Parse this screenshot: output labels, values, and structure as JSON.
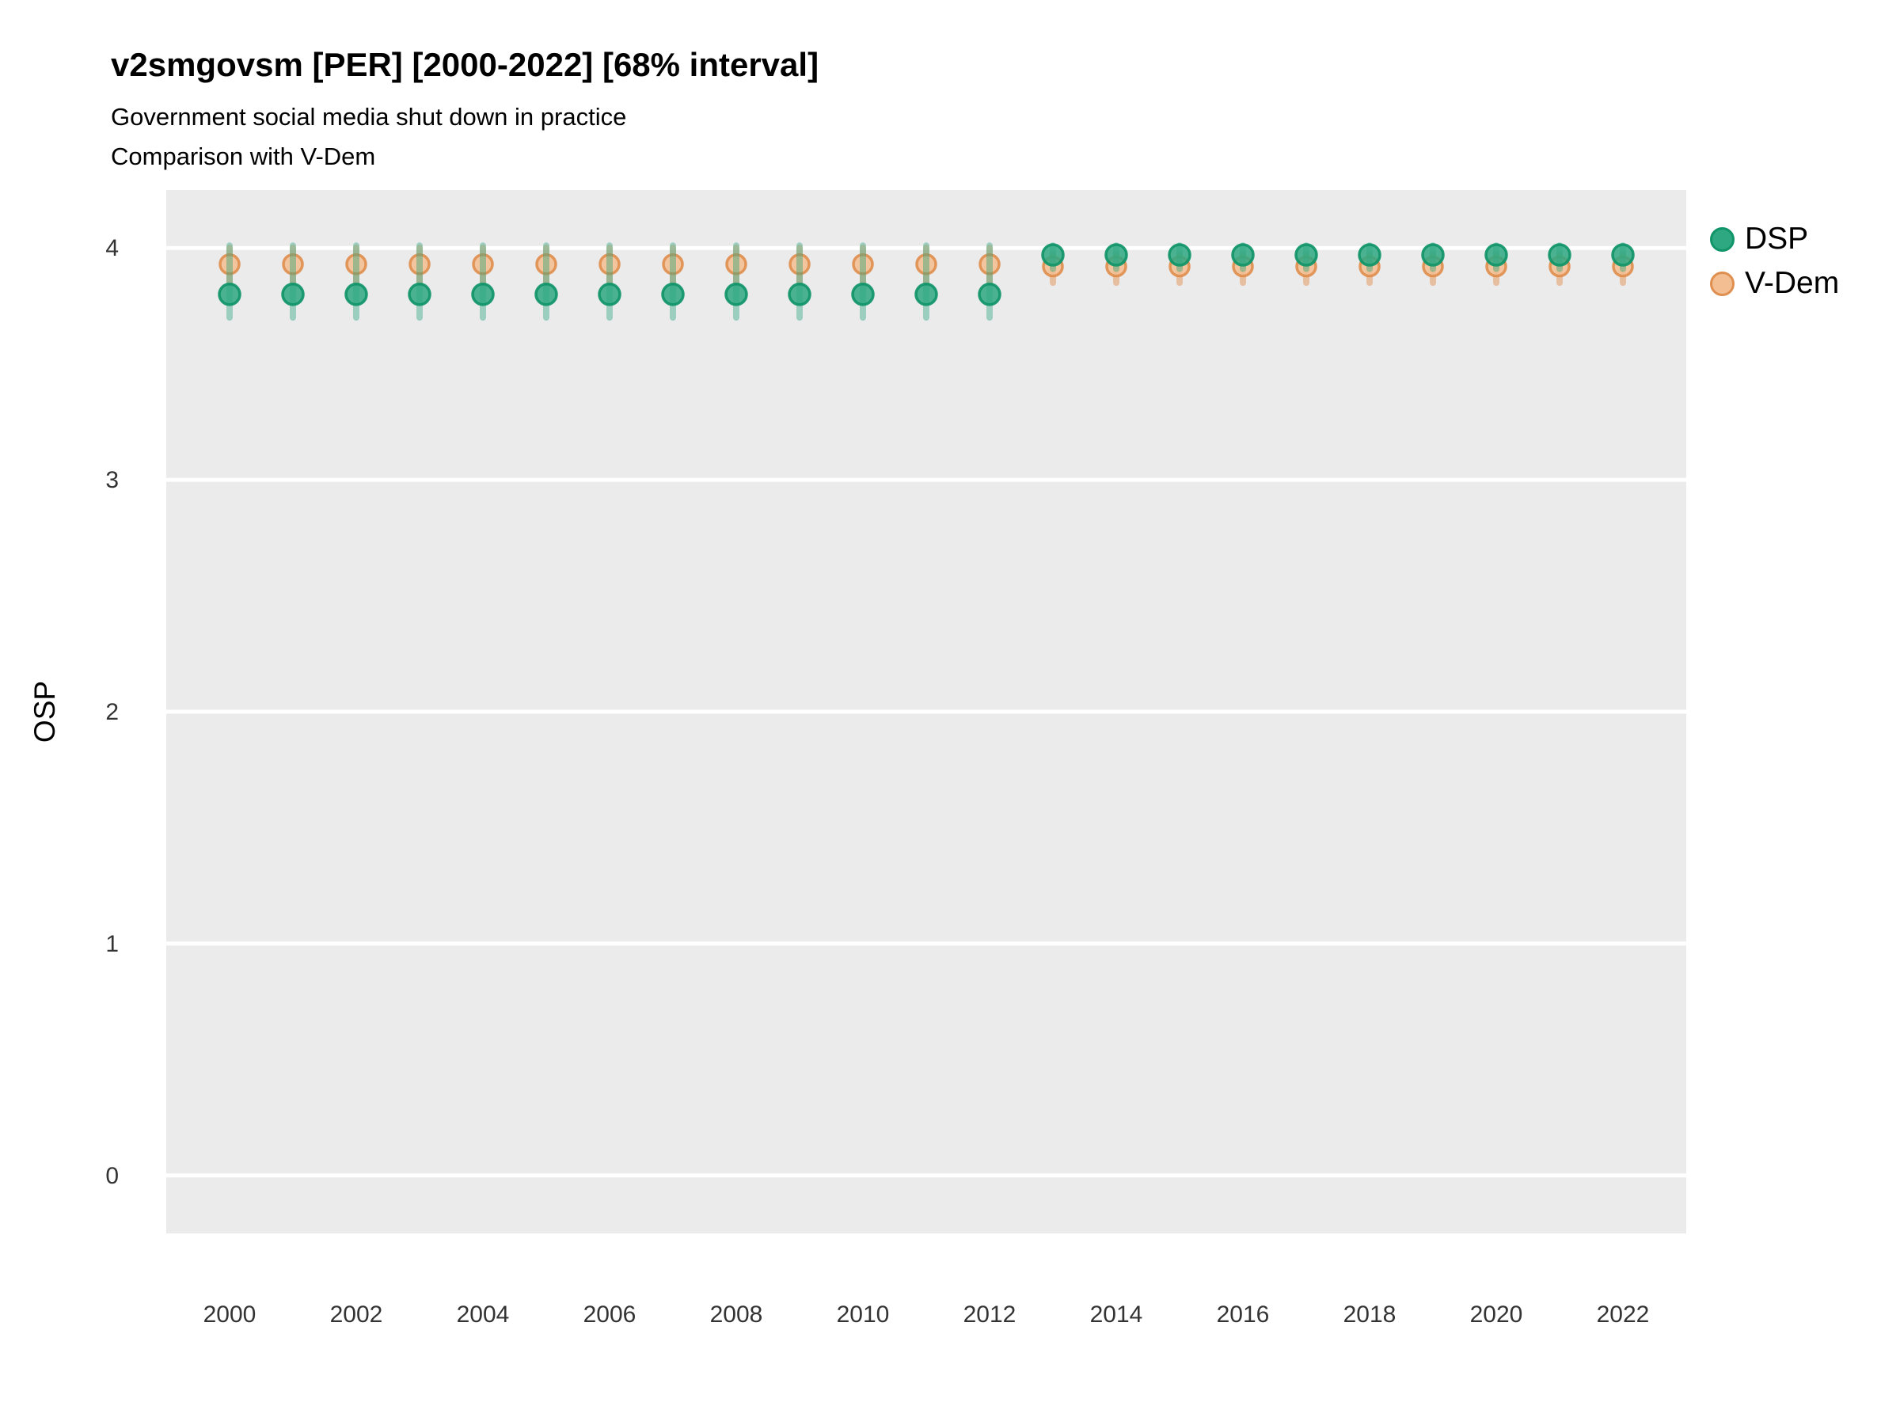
{
  "chart_data": {
    "type": "scatter",
    "title": "v2smgovsm [PER] [2000-2022] [68% interval]",
    "subtitle1": "Government social media shut down in practice",
    "subtitle2": "Comparison with V-Dem",
    "xlabel": "",
    "ylabel": "OSP",
    "interval_note": "68% interval",
    "country_code": "PER",
    "panel_bg": "#EBEBEB",
    "gridline_color": "#FFFFFF",
    "grid": "major-horizontal-only",
    "xlim": [
      1999,
      2023
    ],
    "ylim": [
      -0.25,
      4.25
    ],
    "xticks": [
      2000,
      2002,
      2004,
      2006,
      2008,
      2010,
      2012,
      2014,
      2016,
      2018,
      2020,
      2022
    ],
    "yticks": [
      0,
      1,
      2,
      3,
      4
    ],
    "years": [
      2000,
      2001,
      2002,
      2003,
      2004,
      2005,
      2006,
      2007,
      2008,
      2009,
      2010,
      2011,
      2012,
      2013,
      2014,
      2015,
      2016,
      2017,
      2018,
      2019,
      2020,
      2021,
      2022
    ],
    "series": [
      {
        "id": "vdem",
        "name": "V-Dem",
        "point_fill": "#F3BE92",
        "point_stroke": "#DF8F4F",
        "bar_color": "rgba(223,143,79,0.48)",
        "point_radius": 12,
        "values": [
          3.93,
          3.93,
          3.93,
          3.93,
          3.93,
          3.93,
          3.93,
          3.93,
          3.93,
          3.93,
          3.93,
          3.93,
          3.93,
          3.92,
          3.92,
          3.92,
          3.92,
          3.92,
          3.92,
          3.92,
          3.92,
          3.92,
          3.92
        ],
        "lo": [
          3.85,
          3.85,
          3.85,
          3.85,
          3.85,
          3.85,
          3.85,
          3.85,
          3.85,
          3.85,
          3.85,
          3.85,
          3.85,
          3.85,
          3.85,
          3.85,
          3.85,
          3.85,
          3.85,
          3.85,
          3.85,
          3.85,
          3.85
        ],
        "hi": [
          4.0,
          4.0,
          4.0,
          4.0,
          4.0,
          4.0,
          4.0,
          4.0,
          4.0,
          4.0,
          4.0,
          4.0,
          4.0,
          3.97,
          3.97,
          3.97,
          3.97,
          3.97,
          3.97,
          3.97,
          3.97,
          3.97,
          3.97
        ]
      },
      {
        "id": "dsp",
        "name": "DSP",
        "point_fill": "#2EA881",
        "point_stroke": "#109468",
        "bar_color": "rgba(46,168,129,0.42)",
        "point_radius": 13,
        "values": [
          3.8,
          3.8,
          3.8,
          3.8,
          3.8,
          3.8,
          3.8,
          3.8,
          3.8,
          3.8,
          3.8,
          3.8,
          3.8,
          3.97,
          3.97,
          3.97,
          3.97,
          3.97,
          3.97,
          3.97,
          3.97,
          3.97,
          3.97
        ],
        "lo": [
          3.7,
          3.7,
          3.7,
          3.7,
          3.7,
          3.7,
          3.7,
          3.7,
          3.7,
          3.7,
          3.7,
          3.7,
          3.7,
          3.91,
          3.91,
          3.91,
          3.91,
          3.91,
          3.91,
          3.91,
          3.91,
          3.91,
          3.91
        ],
        "hi": [
          4.01,
          4.01,
          4.01,
          4.01,
          4.01,
          4.01,
          4.01,
          4.01,
          4.01,
          4.01,
          4.01,
          4.01,
          4.01,
          4.01,
          4.01,
          4.01,
          4.01,
          4.01,
          4.01,
          4.01,
          4.01,
          4.01,
          4.01
        ]
      }
    ],
    "legend": {
      "position": "right",
      "items": [
        {
          "series_id": "dsp",
          "label": "DSP"
        },
        {
          "series_id": "vdem",
          "label": "V-Dem"
        }
      ]
    }
  }
}
